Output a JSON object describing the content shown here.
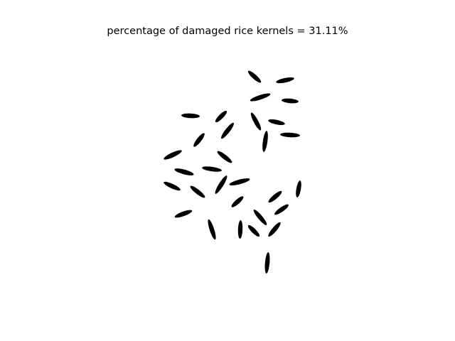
{
  "figure": {
    "title": "percentage of damaged rice kernels = 31.11%",
    "background_color": "#ffffff",
    "kernel_color": "#000000",
    "damaged_percentage": 31.11
  }
}
